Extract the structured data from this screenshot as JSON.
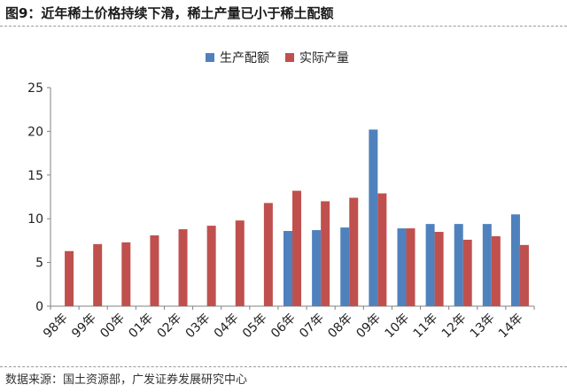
{
  "figure_title": "图9：近年稀土价格持续下滑，稀土产量已小于稀土配额",
  "source": "数据来源：国土资源部，广发证券发展研究中心",
  "colors": {
    "series1": "#4f81bd",
    "series2": "#c0504d",
    "axis": "#808080"
  },
  "chart_data": {
    "type": "bar",
    "categories": [
      "98年",
      "99年",
      "00年",
      "01年",
      "02年",
      "03年",
      "04年",
      "05年",
      "06年",
      "07年",
      "08年",
      "09年",
      "10年",
      "11年",
      "12年",
      "13年",
      "14年"
    ],
    "series": [
      {
        "name": "生产配额",
        "values": [
          null,
          null,
          null,
          null,
          null,
          null,
          null,
          null,
          8.6,
          8.7,
          9.0,
          20.2,
          8.9,
          9.4,
          9.4,
          9.4,
          10.5
        ]
      },
      {
        "name": "实际产量",
        "values": [
          6.3,
          7.1,
          7.3,
          8.1,
          8.8,
          9.2,
          9.8,
          11.8,
          13.2,
          12.0,
          12.4,
          12.9,
          8.9,
          8.5,
          7.6,
          8.0,
          7.0
        ]
      }
    ],
    "ylim": [
      0,
      25
    ],
    "yticks": [
      0,
      5,
      10,
      15,
      20,
      25
    ],
    "legend_position": "top-center",
    "grid": false
  }
}
